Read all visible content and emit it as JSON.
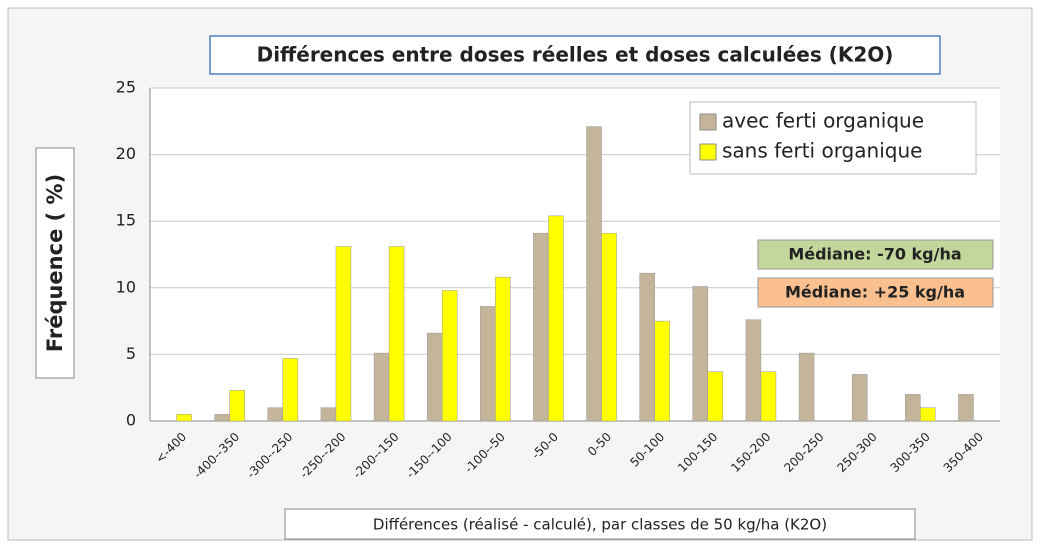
{
  "chart_data": {
    "type": "bar",
    "title": "Différences entre doses réelles et doses calculées (K2O)",
    "xlabel": "Différences  (réalisé - calculé), par classes de 50 kg/ha (K2O)",
    "ylabel": "Fréquence ( %)",
    "categories": [
      "<-400",
      "-400--350",
      "-300--250",
      "-250--200",
      "-200--150",
      "-150--100",
      "-100--50",
      "-50-0",
      "0-50",
      "50-100",
      "100-150",
      "150-200",
      "200-250",
      "250-300",
      "300-350",
      "350-400"
    ],
    "series": [
      {
        "name": "avec ferti organique",
        "color": "#c4b49a",
        "values": [
          0,
          0.5,
          1,
          1,
          5.1,
          6.6,
          8.6,
          14.1,
          22.1,
          11.1,
          10.1,
          7.6,
          5.1,
          3.5,
          2,
          2
        ]
      },
      {
        "name": "sans ferti organique",
        "color": "#ffff00",
        "values": [
          0.5,
          2.3,
          4.7,
          13.1,
          13.1,
          9.8,
          10.8,
          15.4,
          14.1,
          7.5,
          3.7,
          3.7,
          0,
          0,
          1,
          0
        ]
      }
    ],
    "ylim": [
      0,
      25
    ],
    "yticks": [
      0,
      5,
      10,
      15,
      20,
      25
    ],
    "grid": true,
    "legend": "upper right",
    "annotations": [
      {
        "text": "Médiane:  -70  kg/ha",
        "color": "#c3d69b"
      },
      {
        "text": "Médiane: +25 kg/ha",
        "color": "#fac090"
      }
    ]
  }
}
